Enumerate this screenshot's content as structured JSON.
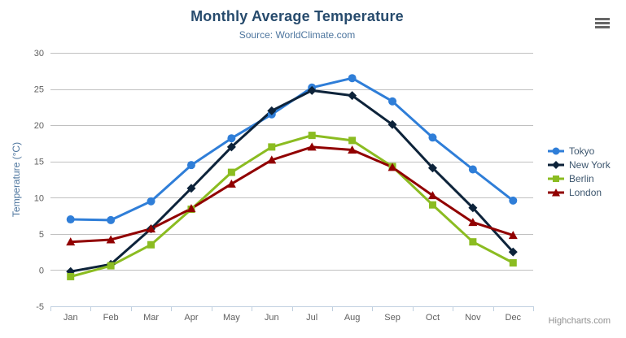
{
  "header": {
    "title": "Monthly Average Temperature",
    "subtitle": "Source: WorldClimate.com",
    "export_menu_icon": "hamburger-icon"
  },
  "credits": {
    "label": "Highcharts.com"
  },
  "chart_data": {
    "type": "line",
    "title": "Monthly Average Temperature",
    "subtitle": "Source: WorldClimate.com",
    "categories": [
      "Jan",
      "Feb",
      "Mar",
      "Apr",
      "May",
      "Jun",
      "Jul",
      "Aug",
      "Sep",
      "Oct",
      "Nov",
      "Dec"
    ],
    "xlabel": "",
    "ylabel": "Temperature (°C)",
    "ylim": [
      -5,
      30
    ],
    "ytick_step": 5,
    "grid": true,
    "legend_position": "right",
    "series": [
      {
        "name": "Tokyo",
        "color": "#2f7ed8",
        "marker": "circle",
        "values": [
          7.0,
          6.9,
          9.5,
          14.5,
          18.2,
          21.5,
          25.2,
          26.5,
          23.3,
          18.3,
          13.9,
          9.6
        ]
      },
      {
        "name": "New York",
        "color": "#0d233a",
        "marker": "diamond",
        "values": [
          -0.2,
          0.8,
          5.7,
          11.3,
          17.0,
          22.0,
          24.8,
          24.1,
          20.1,
          14.1,
          8.6,
          2.5
        ]
      },
      {
        "name": "Berlin",
        "color": "#8bbc21",
        "marker": "square",
        "values": [
          -0.9,
          0.6,
          3.5,
          8.4,
          13.5,
          17.0,
          18.6,
          17.9,
          14.3,
          9.0,
          3.9,
          1.0
        ]
      },
      {
        "name": "London",
        "color": "#910000",
        "marker": "triangle",
        "values": [
          3.9,
          4.2,
          5.7,
          8.5,
          11.9,
          15.2,
          17.0,
          16.6,
          14.2,
          10.3,
          6.6,
          4.8
        ]
      }
    ],
    "palette": {
      "grid_line": "#c0c0c0",
      "axis_line": "#c0d0e0",
      "axis_label": "#606060",
      "axis_title": "#4d759e",
      "title": "#274b6d",
      "subtitle": "#4d759e",
      "legend_text": "#3e576f",
      "credits": "#909090"
    }
  }
}
